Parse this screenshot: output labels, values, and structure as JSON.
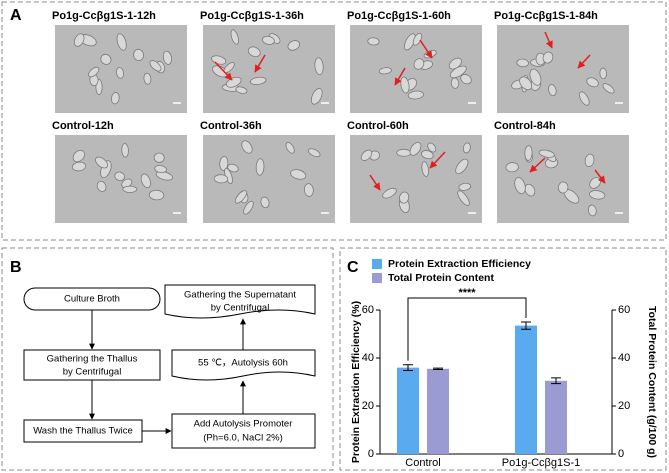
{
  "panel_a": {
    "label": "A",
    "images": [
      {
        "caption": "Po1g-Ccβg1S-1-12h"
      },
      {
        "caption": "Po1g-Ccβg1S-1-36h"
      },
      {
        "caption": "Po1g-Ccβg1S-1-60h"
      },
      {
        "caption": "Po1g-Ccβg1S-1-84h"
      },
      {
        "caption": "Control-12h"
      },
      {
        "caption": "Control-36h"
      },
      {
        "caption": "Control-60h"
      },
      {
        "caption": "Control-84h"
      }
    ]
  },
  "panel_b": {
    "label": "B",
    "nodes": [
      {
        "lines": [
          "Culture Broth"
        ]
      },
      {
        "lines": [
          "Gathering the Thallus",
          "by Centrifugal"
        ]
      },
      {
        "lines": [
          "Wash the Thallus Twice"
        ]
      },
      {
        "lines": [
          "Add Autolysis Promoter",
          "(Ph=6.0, NaCl 2%)"
        ]
      },
      {
        "lines": [
          "55 ℃，Autolysis 60h"
        ]
      },
      {
        "lines": [
          "Gathering the Supernatant",
          "by Centrifugal"
        ]
      }
    ]
  },
  "chart_data": {
    "type": "bar",
    "panel_label": "C",
    "categories": [
      "Control",
      "Po1g-Ccβg1S-1"
    ],
    "series": [
      {
        "name": "Protein Extraction Efficiency",
        "color": "#5aaaf0",
        "values": [
          36,
          53.5
        ],
        "errors": [
          1.2,
          1.5
        ]
      },
      {
        "name": "Total Protein Content",
        "color": "#9b9bd4",
        "values": [
          35.5,
          30.5
        ],
        "errors": [
          0.3,
          1.2
        ],
        "axis": "y2"
      }
    ],
    "ylabel": "Protein Extraction Efficiency (%)",
    "y2label": "Total Protein Content (g/100 g)",
    "ylim": [
      0,
      60
    ],
    "yticks": [
      0,
      20,
      40,
      60
    ],
    "y2lim": [
      0,
      60
    ],
    "y2ticks": [
      0,
      20,
      40,
      60
    ],
    "annotation": "****"
  }
}
